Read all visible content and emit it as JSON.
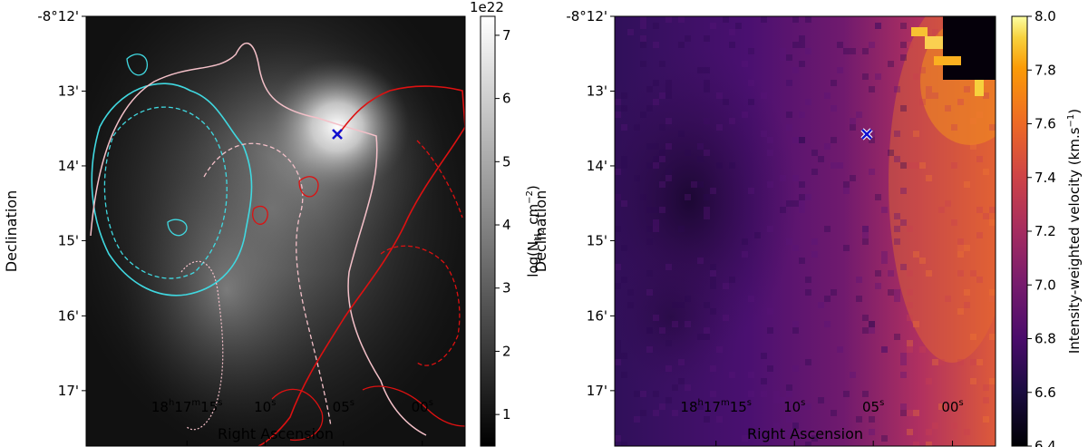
{
  "chart_data": [
    {
      "type": "heatmap",
      "panel": "left",
      "xlabel": "Right Ascension",
      "ylabel": "Declination",
      "x_ticks": [
        {
          "label": "18h17m15s",
          "h": "18",
          "m": "17",
          "s": "15"
        },
        {
          "label": "10s",
          "s": "10"
        },
        {
          "label": "05s",
          "s": "05"
        },
        {
          "label": "00s",
          "s": "00"
        }
      ],
      "y_ticks": [
        "-8°12'",
        "13'",
        "14'",
        "15'",
        "16'",
        "17'"
      ],
      "colorbar": {
        "label_prefix": "log(N",
        "label_sub": "H",
        "label_subsub": "2",
        "label_mid": " cm",
        "label_sup": "−2",
        "label_suffix": ")",
        "offset_text": "1e22",
        "range": [
          0.5,
          7.3
        ],
        "ticks": [
          1,
          2,
          3,
          4,
          5,
          6,
          7
        ],
        "cmap": "gray"
      },
      "peak_marker": {
        "symbol": "x",
        "color": "#1010d0"
      },
      "contour_colors": {
        "blue": "#40d8e0",
        "red": "#dd1111",
        "pink": "#f4c0c8"
      }
    },
    {
      "type": "heatmap",
      "panel": "right",
      "xlabel": "Right Ascension",
      "ylabel": "Declination",
      "x_ticks": [
        {
          "label": "18h17m15s",
          "h": "18",
          "m": "17",
          "s": "15"
        },
        {
          "label": "10s",
          "s": "10"
        },
        {
          "label": "05s",
          "s": "05"
        },
        {
          "label": "00s",
          "s": "00"
        }
      ],
      "y_ticks": [
        "-8°12'",
        "13'",
        "14'",
        "15'",
        "16'",
        "17'"
      ],
      "colorbar": {
        "label_prefix": "Intensity-weighted velocity (km.s",
        "label_sup": "−1",
        "label_suffix": ")",
        "range": [
          6.4,
          8.0
        ],
        "ticks": [
          "6.4",
          "6.6",
          "6.8",
          "7.0",
          "7.2",
          "7.4",
          "7.6",
          "7.8",
          "8.0"
        ],
        "cmap": "inferno"
      },
      "peak_marker": {
        "symbol": "x",
        "color": "#1010d0"
      }
    }
  ]
}
